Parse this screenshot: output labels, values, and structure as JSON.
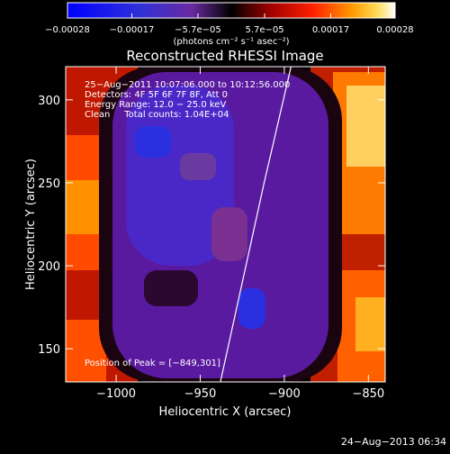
{
  "chart_data": {
    "type": "heatmap",
    "title": "Reconstructed RHESSI Image",
    "xlabel": "Heliocentric X (arcsec)",
    "ylabel": "Heliocentric Y (arcsec)",
    "xlim": [
      -1030,
      -840
    ],
    "ylim": [
      130,
      320
    ],
    "xticks": [
      -1000,
      -950,
      -900,
      -850
    ],
    "xtick_labels": [
      "−1000",
      "−950",
      "−900",
      "−850"
    ],
    "yticks": [
      150,
      200,
      250,
      300
    ],
    "ytick_labels": [
      "150",
      "200",
      "250",
      "300"
    ],
    "colorbar": {
      "ticks": [
        -0.00028,
        -0.00017,
        -5.7e-05,
        5.7e-05,
        0.00017,
        0.00028
      ],
      "tick_labels": [
        "−0.00028",
        "−0.00017",
        "−5.7e−05",
        "5.7e−05",
        "0.00017",
        "0.00028"
      ],
      "unit_label": "(photons cm⁻² s⁻¹ asec⁻²)",
      "range": [
        -0.00028,
        0.00028
      ]
    },
    "annotations": [
      "25−Aug−2011 10:07:06.000 to 10:12:56.000",
      "Detectors: 4F 5F 6F 7F 8F, Att 0",
      "Energy Range: 12.0 − 25.0 keV",
      "Clean     Total counts: 1.04E+04"
    ],
    "peak_label": "Position of Peak = [−849,301]",
    "limb_curve": [
      [
        -938,
        130
      ],
      [
        -925,
        190
      ],
      [
        -912,
        250
      ],
      [
        -896,
        320
      ]
    ],
    "colors": {
      "low": "#2020ff",
      "mid": "#000000",
      "high": "#ffffff"
    }
  },
  "footer": {
    "timestamp": "24−Aug−2013 06:34"
  }
}
